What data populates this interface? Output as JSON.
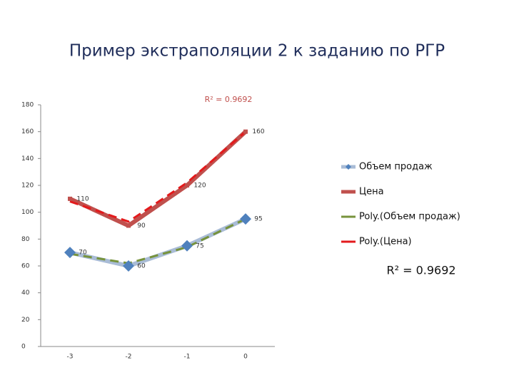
{
  "chart_data": {
    "type": "line",
    "title": "Пример экстраполяции 2 к заданию по РГР",
    "categories": [
      "-3",
      "-2",
      "-1",
      "0"
    ],
    "series": [
      {
        "name": "Объем продаж",
        "color": "#a9bcd6",
        "marker": "diamond",
        "marker_color": "#4f81bd",
        "data_labels": true,
        "values": [
          70,
          60,
          75,
          95
        ]
      },
      {
        "name": "Цена",
        "color": "#c0504d",
        "marker": "square",
        "marker_color": "#c0504d",
        "data_labels": true,
        "values": [
          110,
          90,
          120,
          160
        ]
      },
      {
        "name": "Poly.(Объем продаж)",
        "color": "#77933c",
        "dash": true,
        "values": [
          69,
          62,
          74,
          95
        ]
      },
      {
        "name": "Poly.(Цена)",
        "color": "#e31a1c",
        "dash": true,
        "values": [
          108,
          93,
          122,
          160
        ]
      }
    ],
    "ylim": [
      0,
      180
    ],
    "yticks": [
      0,
      20,
      40,
      60,
      80,
      100,
      120,
      140,
      160,
      180
    ],
    "annotations": [
      "R² = 0.9692",
      "R² = 0.9692"
    ],
    "legend": "right"
  }
}
